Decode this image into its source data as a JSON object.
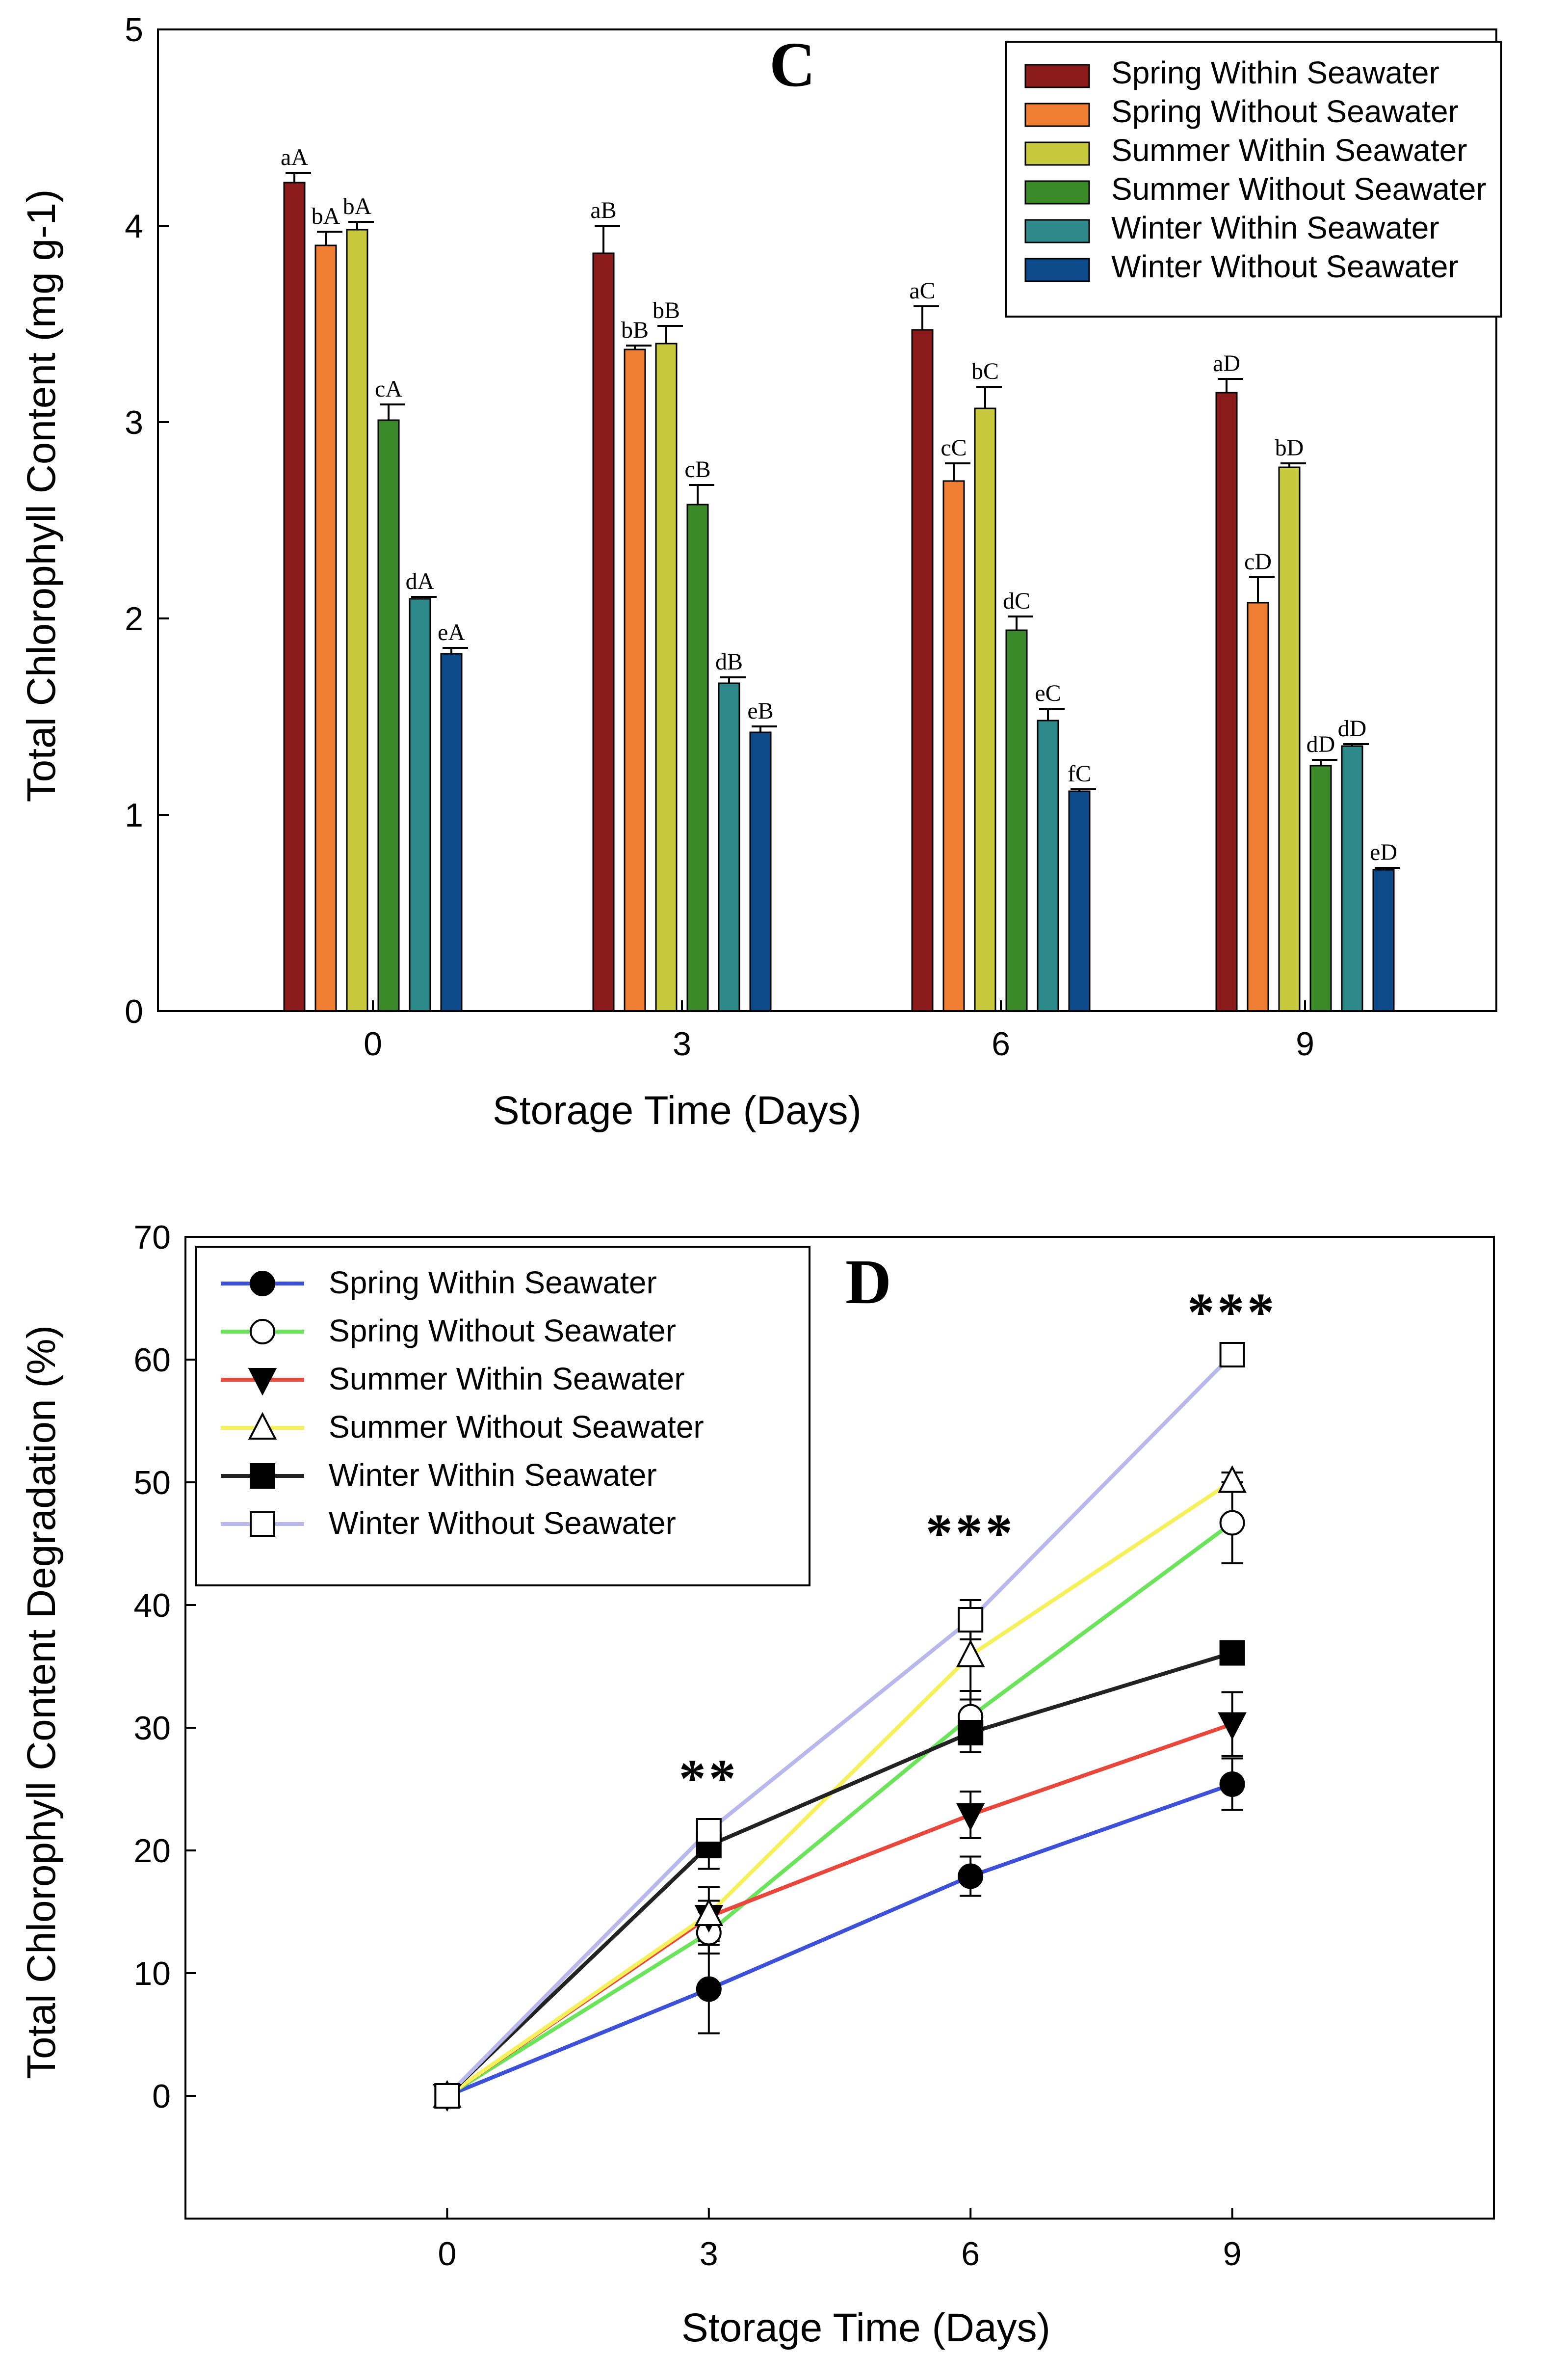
{
  "chart_data": [
    {
      "type": "bar",
      "panel": "C",
      "title": "",
      "xlabel": "Storage Time (Days)",
      "ylabel": "Total Chlorophyll Content (mg g-1)",
      "ylim": [
        0,
        5
      ],
      "yticks": [
        "0",
        "1",
        "2",
        "3",
        "4",
        "5"
      ],
      "categories": [
        "0",
        "3",
        "6",
        "9"
      ],
      "legend_position": "top-right",
      "series": [
        {
          "name": "Spring Within Seawater",
          "color": "#8b1a1a",
          "values": [
            4.22,
            3.86,
            3.47,
            3.15
          ],
          "errors": [
            0.05,
            0.14,
            0.12,
            0.07
          ],
          "labels": [
            "aA",
            "aB",
            "aC",
            "aD"
          ]
        },
        {
          "name": "Spring Without Seawater",
          "color": "#f07f33",
          "values": [
            3.9,
            3.37,
            2.7,
            2.08
          ],
          "errors": [
            0.07,
            0.02,
            0.09,
            0.13
          ],
          "labels": [
            "bA",
            "bB",
            "cC",
            "cD"
          ]
        },
        {
          "name": "Summer Within Seawater",
          "color": "#c8c83c",
          "values": [
            3.98,
            3.4,
            3.07,
            2.77
          ],
          "errors": [
            0.04,
            0.09,
            0.11,
            0.02
          ],
          "labels": [
            "bA",
            "bB",
            "bC",
            "bD"
          ]
        },
        {
          "name": "Summer Without Seawater",
          "color": "#3a8a2a",
          "values": [
            3.01,
            2.58,
            1.94,
            1.25
          ],
          "errors": [
            0.08,
            0.1,
            0.07,
            0.03
          ],
          "labels": [
            "cA",
            "cB",
            "dC",
            "dD"
          ]
        },
        {
          "name": "Winter Within Seawater",
          "color": "#2e8a8a",
          "values": [
            2.1,
            1.67,
            1.48,
            1.35
          ],
          "errors": [
            0.01,
            0.03,
            0.06,
            0.01
          ],
          "labels": [
            "dA",
            "dB",
            "eC",
            "dD"
          ]
        },
        {
          "name": "Winter Without Seawater",
          "color": "#0d4a8a",
          "values": [
            1.82,
            1.42,
            1.12,
            0.72
          ],
          "errors": [
            0.03,
            0.03,
            0.01,
            0.01
          ],
          "labels": [
            "eA",
            "eB",
            "fC",
            "eD"
          ]
        }
      ]
    },
    {
      "type": "line",
      "panel": "D",
      "title": "",
      "xlabel": "Storage Time (Days)",
      "ylabel": "Total Chlorophyll Content Degradation (%)",
      "ylim": [
        -10,
        70
      ],
      "xlim": [
        -3,
        12
      ],
      "x": [
        0,
        3,
        6,
        9
      ],
      "xticks": [
        "0",
        "3",
        "6",
        "9"
      ],
      "yticks": [
        "0",
        "10",
        "20",
        "30",
        "40",
        "50",
        "60",
        "70"
      ],
      "legend_position": "top-left",
      "significance": [
        {
          "x": 3,
          "y": 26,
          "text": "**"
        },
        {
          "x": 6,
          "y": 46,
          "text": "***"
        },
        {
          "x": 9,
          "y": 64,
          "text": "***"
        }
      ],
      "series": [
        {
          "name": "Spring Within Seawater",
          "color": "#3d50d8",
          "marker": "filled-circle",
          "values": [
            0,
            8.7,
            17.9,
            25.4
          ],
          "errors": [
            0,
            3.6,
            1.6,
            2.1
          ]
        },
        {
          "name": "Spring Without Seawater",
          "color": "#6be35a",
          "marker": "open-circle",
          "values": [
            0,
            13.3,
            30.9,
            46.7
          ],
          "errors": [
            0,
            1.7,
            2.1,
            3.3
          ]
        },
        {
          "name": "Summer Within Seawater",
          "color": "#e8473c",
          "marker": "filled-triangle-down",
          "values": [
            0,
            14.6,
            22.9,
            30.3
          ],
          "errors": [
            0,
            1.3,
            1.9,
            2.6
          ]
        },
        {
          "name": "Summer Without Seawater",
          "color": "#f6f05a",
          "marker": "open-triangle-up",
          "values": [
            0,
            14.8,
            35.9,
            50.1
          ],
          "errors": [
            0,
            2.2,
            3.6,
            0.7
          ]
        },
        {
          "name": "Winter Within Seawater",
          "color": "#222222",
          "marker": "filled-square",
          "values": [
            0,
            20.4,
            29.6,
            36.1
          ],
          "errors": [
            0,
            1.9,
            1.6,
            0.4
          ]
        },
        {
          "name": "Winter Without Seawater",
          "color": "#b8b8ec",
          "marker": "open-square",
          "values": [
            0,
            21.6,
            38.8,
            60.4
          ],
          "errors": [
            0,
            0.4,
            1.6,
            0.3
          ]
        }
      ]
    }
  ]
}
